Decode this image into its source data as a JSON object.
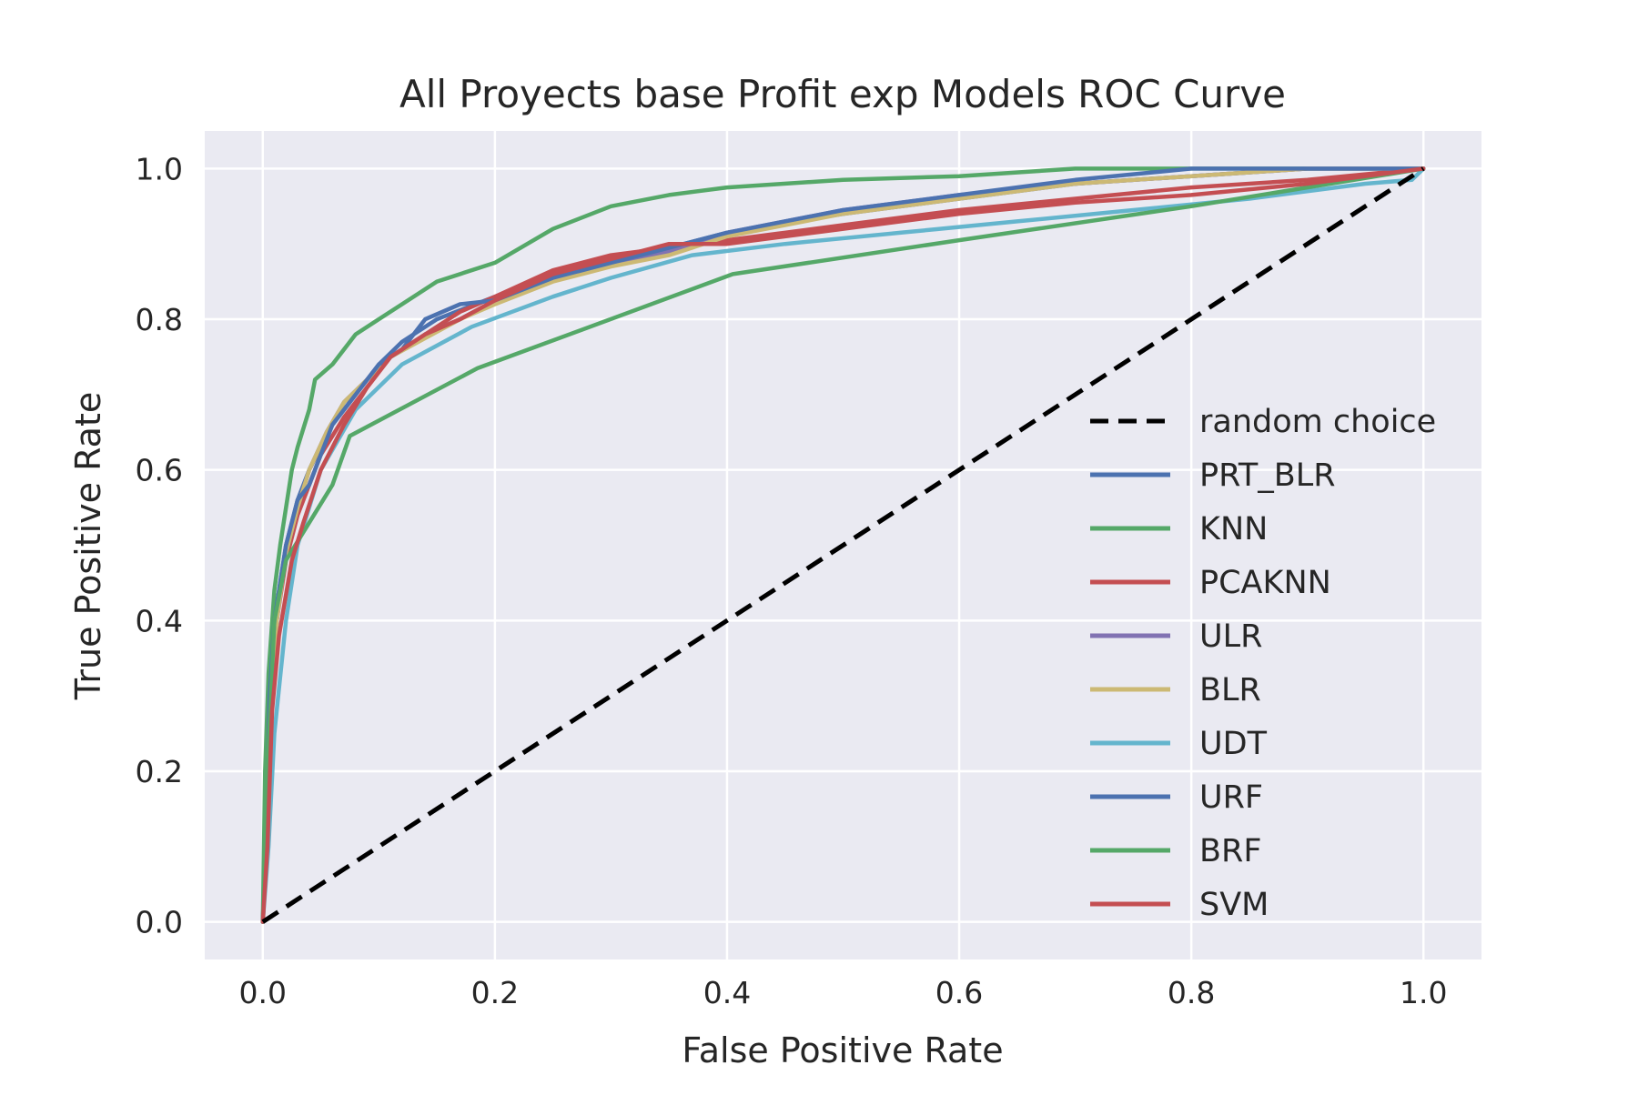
{
  "chart_data": {
    "type": "line",
    "title": "All Proyects base Profit exp Models ROC Curve",
    "xlabel": "False Positive Rate",
    "ylabel": "True Positive Rate",
    "xlim": [
      -0.05,
      1.05
    ],
    "ylim": [
      -0.05,
      1.05
    ],
    "xticks": [
      "0.0",
      "0.2",
      "0.4",
      "0.6",
      "0.8",
      "1.0"
    ],
    "yticks": [
      "0.0",
      "0.2",
      "0.4",
      "0.6",
      "0.8",
      "1.0"
    ],
    "grid": true,
    "legend_position": "lower-right",
    "colors": {
      "background": "#eaeaf2",
      "grid": "#ffffff",
      "blue": "#4c72b0",
      "green": "#55a868",
      "red": "#c44e52",
      "purple": "#8172b2",
      "yellow": "#ccb974",
      "cyan": "#64b5cd",
      "random": "#000000"
    },
    "series": [
      {
        "name": "random choice",
        "color": "#000000",
        "dashed": true,
        "points": [
          [
            0,
            0
          ],
          [
            1,
            1
          ]
        ]
      },
      {
        "name": "PRT_BLR",
        "color": "#4c72b0",
        "points": [
          [
            0,
            0
          ],
          [
            0.003,
            0.12
          ],
          [
            0.006,
            0.3
          ],
          [
            0.01,
            0.4
          ],
          [
            0.02,
            0.5
          ],
          [
            0.03,
            0.56
          ],
          [
            0.04,
            0.6
          ],
          [
            0.05,
            0.63
          ],
          [
            0.06,
            0.66
          ],
          [
            0.08,
            0.7
          ],
          [
            0.1,
            0.74
          ],
          [
            0.12,
            0.77
          ],
          [
            0.15,
            0.8
          ],
          [
            0.2,
            0.83
          ],
          [
            0.25,
            0.86
          ],
          [
            0.3,
            0.88
          ],
          [
            0.35,
            0.895
          ],
          [
            0.4,
            0.915
          ],
          [
            0.5,
            0.94
          ],
          [
            0.6,
            0.96
          ],
          [
            0.7,
            0.98
          ],
          [
            0.8,
            0.99
          ],
          [
            0.9,
            1.0
          ],
          [
            1.0,
            1.0
          ]
        ]
      },
      {
        "name": "KNN",
        "color": "#55a868",
        "points": [
          [
            0,
            0
          ],
          [
            0.002,
            0.2
          ],
          [
            0.005,
            0.33
          ],
          [
            0.01,
            0.44
          ],
          [
            0.015,
            0.5
          ],
          [
            0.02,
            0.55
          ],
          [
            0.025,
            0.6
          ],
          [
            0.03,
            0.63
          ],
          [
            0.04,
            0.68
          ],
          [
            0.045,
            0.72
          ],
          [
            0.06,
            0.74
          ],
          [
            0.08,
            0.78
          ],
          [
            0.1,
            0.8
          ],
          [
            0.12,
            0.82
          ],
          [
            0.15,
            0.85
          ],
          [
            0.2,
            0.875
          ],
          [
            0.25,
            0.92
          ],
          [
            0.3,
            0.95
          ],
          [
            0.35,
            0.965
          ],
          [
            0.4,
            0.975
          ],
          [
            0.5,
            0.985
          ],
          [
            0.6,
            0.99
          ],
          [
            0.7,
            1.0
          ],
          [
            1.0,
            1.0
          ]
        ]
      },
      {
        "name": "PCAKNN",
        "color": "#c44e52",
        "points": [
          [
            0,
            0
          ],
          [
            0.004,
            0.12
          ],
          [
            0.008,
            0.3
          ],
          [
            0.012,
            0.4
          ],
          [
            0.02,
            0.48
          ],
          [
            0.03,
            0.54
          ],
          [
            0.04,
            0.58
          ],
          [
            0.05,
            0.62
          ],
          [
            0.07,
            0.67
          ],
          [
            0.09,
            0.71
          ],
          [
            0.11,
            0.75
          ],
          [
            0.14,
            0.78
          ],
          [
            0.17,
            0.81
          ],
          [
            0.2,
            0.83
          ],
          [
            0.25,
            0.865
          ],
          [
            0.3,
            0.885
          ],
          [
            0.35,
            0.895
          ],
          [
            0.4,
            0.905
          ],
          [
            0.45,
            0.915
          ],
          [
            0.5,
            0.925
          ],
          [
            0.6,
            0.945
          ],
          [
            0.7,
            0.96
          ],
          [
            0.8,
            0.975
          ],
          [
            0.9,
            0.985
          ],
          [
            1.0,
            1.0
          ]
        ]
      },
      {
        "name": "ULR",
        "color": "#8172b2",
        "points": [
          [
            0,
            0
          ],
          [
            0.004,
            0.12
          ],
          [
            0.008,
            0.3
          ],
          [
            0.012,
            0.4
          ],
          [
            0.02,
            0.49
          ],
          [
            0.03,
            0.55
          ],
          [
            0.04,
            0.6
          ],
          [
            0.055,
            0.65
          ],
          [
            0.07,
            0.69
          ],
          [
            0.09,
            0.72
          ],
          [
            0.11,
            0.75
          ],
          [
            0.14,
            0.78
          ],
          [
            0.17,
            0.8
          ],
          [
            0.2,
            0.825
          ],
          [
            0.25,
            0.855
          ],
          [
            0.3,
            0.875
          ],
          [
            0.35,
            0.89
          ],
          [
            0.4,
            0.915
          ],
          [
            0.5,
            0.945
          ],
          [
            0.6,
            0.965
          ],
          [
            0.7,
            0.98
          ],
          [
            0.8,
            0.99
          ],
          [
            0.9,
            1.0
          ],
          [
            1.0,
            1.0
          ]
        ]
      },
      {
        "name": "BLR",
        "color": "#ccb974",
        "points": [
          [
            0,
            0
          ],
          [
            0.004,
            0.12
          ],
          [
            0.008,
            0.3
          ],
          [
            0.012,
            0.4
          ],
          [
            0.02,
            0.49
          ],
          [
            0.03,
            0.55
          ],
          [
            0.04,
            0.6
          ],
          [
            0.055,
            0.65
          ],
          [
            0.07,
            0.69
          ],
          [
            0.09,
            0.72
          ],
          [
            0.11,
            0.75
          ],
          [
            0.14,
            0.775
          ],
          [
            0.17,
            0.8
          ],
          [
            0.2,
            0.82
          ],
          [
            0.25,
            0.85
          ],
          [
            0.3,
            0.87
          ],
          [
            0.35,
            0.885
          ],
          [
            0.4,
            0.91
          ],
          [
            0.5,
            0.94
          ],
          [
            0.6,
            0.96
          ],
          [
            0.7,
            0.98
          ],
          [
            0.8,
            0.99
          ],
          [
            0.9,
            1.0
          ],
          [
            1.0,
            1.0
          ]
        ]
      },
      {
        "name": "UDT",
        "color": "#64b5cd",
        "points": [
          [
            0,
            0
          ],
          [
            0.005,
            0.1
          ],
          [
            0.01,
            0.25
          ],
          [
            0.02,
            0.4
          ],
          [
            0.03,
            0.5
          ],
          [
            0.05,
            0.6
          ],
          [
            0.08,
            0.68
          ],
          [
            0.12,
            0.74
          ],
          [
            0.18,
            0.79
          ],
          [
            0.25,
            0.83
          ],
          [
            0.3,
            0.855
          ],
          [
            0.37,
            0.885
          ],
          [
            0.45,
            0.9
          ],
          [
            0.55,
            0.915
          ],
          [
            0.65,
            0.93
          ],
          [
            0.75,
            0.945
          ],
          [
            0.85,
            0.96
          ],
          [
            0.95,
            0.98
          ],
          [
            0.99,
            0.985
          ],
          [
            1.0,
            1.0
          ]
        ]
      },
      {
        "name": "URF",
        "color": "#4c72b0",
        "points": [
          [
            0,
            0
          ],
          [
            0.003,
            0.12
          ],
          [
            0.006,
            0.3
          ],
          [
            0.01,
            0.4
          ],
          [
            0.02,
            0.5
          ],
          [
            0.03,
            0.56
          ],
          [
            0.04,
            0.58
          ],
          [
            0.05,
            0.62
          ],
          [
            0.06,
            0.66
          ],
          [
            0.08,
            0.7
          ],
          [
            0.1,
            0.74
          ],
          [
            0.12,
            0.76
          ],
          [
            0.14,
            0.8
          ],
          [
            0.17,
            0.82
          ],
          [
            0.2,
            0.825
          ],
          [
            0.25,
            0.855
          ],
          [
            0.3,
            0.875
          ],
          [
            0.35,
            0.895
          ],
          [
            0.4,
            0.915
          ],
          [
            0.5,
            0.945
          ],
          [
            0.6,
            0.965
          ],
          [
            0.7,
            0.985
          ],
          [
            0.8,
            1.0
          ],
          [
            1.0,
            1.0
          ]
        ]
      },
      {
        "name": "BRF",
        "color": "#55a868",
        "points": [
          [
            0,
            0
          ],
          [
            0.004,
            0.2
          ],
          [
            0.01,
            0.4
          ],
          [
            0.02,
            0.48
          ],
          [
            0.04,
            0.53
          ],
          [
            0.06,
            0.58
          ],
          [
            0.075,
            0.645
          ],
          [
            0.185,
            0.735
          ],
          [
            0.405,
            0.86
          ],
          [
            0.6,
            0.905
          ],
          [
            0.8,
            0.95
          ],
          [
            1.0,
            1.0
          ]
        ]
      },
      {
        "name": "SVM",
        "color": "#c44e52",
        "points": [
          [
            0,
            0
          ],
          [
            0.004,
            0.1
          ],
          [
            0.008,
            0.28
          ],
          [
            0.014,
            0.38
          ],
          [
            0.025,
            0.48
          ],
          [
            0.035,
            0.53
          ],
          [
            0.05,
            0.6
          ],
          [
            0.07,
            0.66
          ],
          [
            0.09,
            0.71
          ],
          [
            0.11,
            0.75
          ],
          [
            0.14,
            0.78
          ],
          [
            0.17,
            0.8
          ],
          [
            0.2,
            0.825
          ],
          [
            0.25,
            0.86
          ],
          [
            0.3,
            0.88
          ],
          [
            0.35,
            0.9
          ],
          [
            0.4,
            0.9
          ],
          [
            0.45,
            0.91
          ],
          [
            0.5,
            0.92
          ],
          [
            0.6,
            0.94
          ],
          [
            0.7,
            0.955
          ],
          [
            0.8,
            0.965
          ],
          [
            0.9,
            0.98
          ],
          [
            1.0,
            1.0
          ]
        ]
      }
    ]
  }
}
